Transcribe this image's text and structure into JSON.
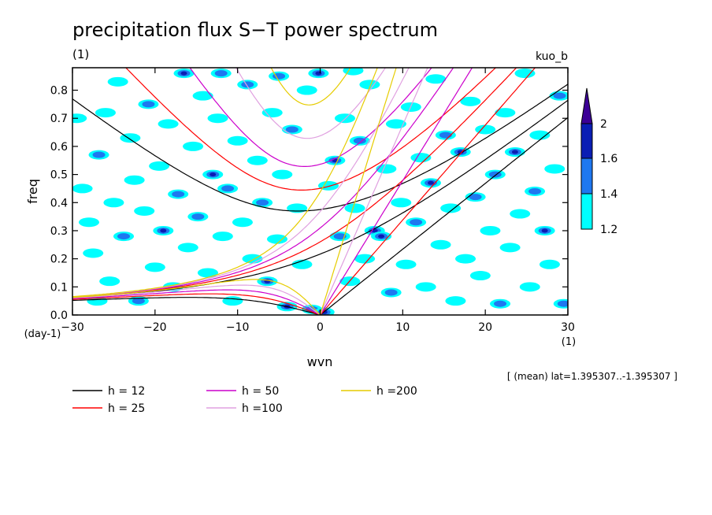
{
  "chart_data": {
    "type": "heatmap",
    "title": "precipitation flux S−T power spectrum",
    "subtitle_left": "(1)",
    "subtitle_right": "kuo_b",
    "xlabel": "wvn",
    "xunit": "(1)",
    "ylabel": "freq",
    "yunit": "(day-1)",
    "xlim": [
      -30,
      30
    ],
    "ylim": [
      0,
      0.88
    ],
    "xticks": [
      "−30",
      "−20",
      "−10",
      "0",
      "10",
      "20",
      "30"
    ],
    "yticks": [
      "0.0",
      "0.1",
      "0.2",
      "0.3",
      "0.4",
      "0.5",
      "0.6",
      "0.7",
      "0.8"
    ],
    "note": "[ (mean) lat=1.395307..-1.395307 ]",
    "colorbar": {
      "levels": [
        "1.2",
        "1.4",
        "1.6",
        "2"
      ],
      "colors": [
        "#00ffff",
        "#1e78f0",
        "#0a1eb4",
        "#3c0096"
      ]
    },
    "cells": [
      [
        -29.5,
        0.7,
        1
      ],
      [
        -28.8,
        0.45,
        1
      ],
      [
        -28.0,
        0.33,
        1
      ],
      [
        -27.5,
        0.22,
        1
      ],
      [
        -26.8,
        0.57,
        2
      ],
      [
        -26.0,
        0.72,
        1
      ],
      [
        -25.5,
        0.12,
        1
      ],
      [
        -25.0,
        0.4,
        1
      ],
      [
        -24.5,
        0.83,
        1
      ],
      [
        -23.8,
        0.28,
        2
      ],
      [
        -23.0,
        0.63,
        1
      ],
      [
        -22.5,
        0.48,
        1
      ],
      [
        -22.0,
        0.05,
        2
      ],
      [
        -21.3,
        0.37,
        1
      ],
      [
        -20.8,
        0.75,
        2
      ],
      [
        -20.0,
        0.17,
        1
      ],
      [
        -19.5,
        0.53,
        1
      ],
      [
        -19.0,
        0.3,
        3
      ],
      [
        -18.4,
        0.68,
        1
      ],
      [
        -17.8,
        0.1,
        1
      ],
      [
        -17.2,
        0.43,
        2
      ],
      [
        -16.5,
        0.86,
        3
      ],
      [
        -16.0,
        0.24,
        1
      ],
      [
        -15.4,
        0.6,
        1
      ],
      [
        -14.8,
        0.35,
        2
      ],
      [
        -14.2,
        0.78,
        1
      ],
      [
        -13.6,
        0.15,
        1
      ],
      [
        -13.0,
        0.5,
        3
      ],
      [
        -12.4,
        0.7,
        1
      ],
      [
        -11.8,
        0.28,
        1
      ],
      [
        -11.2,
        0.45,
        2
      ],
      [
        -10.6,
        0.05,
        1
      ],
      [
        -10.0,
        0.62,
        1
      ],
      [
        -9.4,
        0.33,
        1
      ],
      [
        -8.8,
        0.82,
        2
      ],
      [
        -8.2,
        0.2,
        1
      ],
      [
        -7.6,
        0.55,
        1
      ],
      [
        -7.0,
        0.4,
        2
      ],
      [
        -6.4,
        0.12,
        3
      ],
      [
        -5.8,
        0.72,
        1
      ],
      [
        -5.2,
        0.27,
        1
      ],
      [
        -4.6,
        0.5,
        1
      ],
      [
        -4.0,
        0.03,
        3
      ],
      [
        -3.4,
        0.66,
        2
      ],
      [
        -2.8,
        0.38,
        1
      ],
      [
        -2.2,
        0.18,
        1
      ],
      [
        -1.6,
        0.8,
        1
      ],
      [
        -1.0,
        0.02,
        2
      ],
      [
        -0.2,
        0.86,
        3
      ],
      [
        0.5,
        0.01,
        3
      ],
      [
        1.0,
        0.46,
        1
      ],
      [
        1.8,
        0.55,
        3
      ],
      [
        2.4,
        0.28,
        2
      ],
      [
        3.0,
        0.7,
        1
      ],
      [
        3.6,
        0.12,
        1
      ],
      [
        4.2,
        0.38,
        1
      ],
      [
        4.8,
        0.62,
        2
      ],
      [
        5.4,
        0.2,
        1
      ],
      [
        6.0,
        0.82,
        1
      ],
      [
        6.6,
        0.3,
        3
      ],
      [
        7.4,
        0.28,
        3
      ],
      [
        8.0,
        0.52,
        1
      ],
      [
        8.6,
        0.08,
        2
      ],
      [
        9.2,
        0.68,
        1
      ],
      [
        9.8,
        0.4,
        1
      ],
      [
        10.4,
        0.18,
        1
      ],
      [
        11.0,
        0.74,
        1
      ],
      [
        11.6,
        0.33,
        2
      ],
      [
        12.2,
        0.56,
        1
      ],
      [
        12.8,
        0.1,
        1
      ],
      [
        13.4,
        0.47,
        3
      ],
      [
        14.0,
        0.84,
        1
      ],
      [
        14.6,
        0.25,
        1
      ],
      [
        15.2,
        0.64,
        2
      ],
      [
        15.8,
        0.38,
        1
      ],
      [
        16.4,
        0.05,
        1
      ],
      [
        17.0,
        0.58,
        3
      ],
      [
        17.6,
        0.2,
        1
      ],
      [
        18.2,
        0.76,
        1
      ],
      [
        18.8,
        0.42,
        2
      ],
      [
        19.4,
        0.14,
        1
      ],
      [
        20.0,
        0.66,
        1
      ],
      [
        20.6,
        0.3,
        1
      ],
      [
        21.2,
        0.5,
        2
      ],
      [
        21.8,
        0.04,
        2
      ],
      [
        22.4,
        0.72,
        1
      ],
      [
        23.0,
        0.24,
        1
      ],
      [
        23.6,
        0.58,
        3
      ],
      [
        24.2,
        0.36,
        1
      ],
      [
        24.8,
        0.86,
        1
      ],
      [
        25.4,
        0.1,
        1
      ],
      [
        26.0,
        0.44,
        2
      ],
      [
        26.6,
        0.64,
        1
      ],
      [
        27.2,
        0.3,
        3
      ],
      [
        27.8,
        0.18,
        1
      ],
      [
        28.4,
        0.52,
        1
      ],
      [
        29.0,
        0.78,
        2
      ],
      [
        29.5,
        0.04,
        2
      ],
      [
        -27.0,
        0.05,
        1
      ],
      [
        -5.0,
        0.85,
        2
      ],
      [
        -12.0,
        0.86,
        2
      ],
      [
        4.0,
        0.87,
        1
      ]
    ],
    "series": [
      {
        "name": "h = 12",
        "color": "#000000",
        "h": 12
      },
      {
        "name": "h = 25",
        "color": "#ff0000",
        "h": 25
      },
      {
        "name": "h = 50",
        "color": "#cc00cc",
        "h": 50
      },
      {
        "name": "h =100",
        "color": "#e0a0e0",
        "h": 100
      },
      {
        "name": "h =200",
        "color": "#e6cc00",
        "h": 200
      }
    ]
  }
}
